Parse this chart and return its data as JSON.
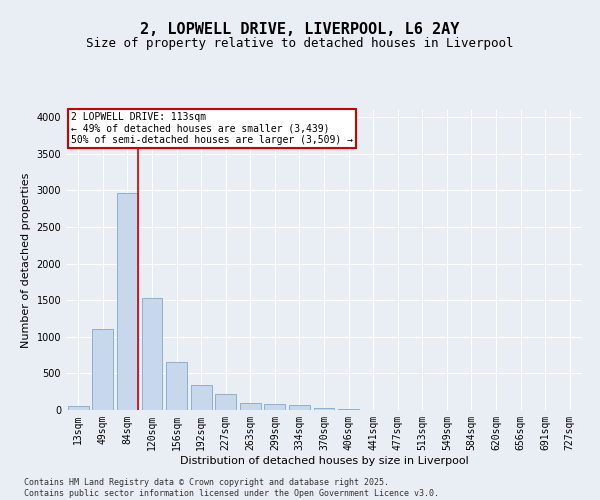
{
  "title": "2, LOPWELL DRIVE, LIVERPOOL, L6 2AY",
  "subtitle": "Size of property relative to detached houses in Liverpool",
  "xlabel": "Distribution of detached houses by size in Liverpool",
  "ylabel": "Number of detached properties",
  "categories": [
    "13sqm",
    "49sqm",
    "84sqm",
    "120sqm",
    "156sqm",
    "192sqm",
    "227sqm",
    "263sqm",
    "299sqm",
    "334sqm",
    "370sqm",
    "406sqm",
    "441sqm",
    "477sqm",
    "513sqm",
    "549sqm",
    "584sqm",
    "620sqm",
    "656sqm",
    "691sqm",
    "727sqm"
  ],
  "values": [
    50,
    1110,
    2970,
    1530,
    660,
    340,
    215,
    90,
    85,
    65,
    30,
    15,
    5,
    2,
    0,
    0,
    0,
    0,
    0,
    0,
    0
  ],
  "bar_color": "#c8d8ec",
  "bar_edge_color": "#7fa8cc",
  "vline_color": "#cc0000",
  "annotation_text": "2 LOPWELL DRIVE: 113sqm\n← 49% of detached houses are smaller (3,439)\n50% of semi-detached houses are larger (3,509) →",
  "annotation_box_color": "#ffffff",
  "annotation_box_edge": "#cc0000",
  "ylim": [
    0,
    4100
  ],
  "yticks": [
    0,
    500,
    1000,
    1500,
    2000,
    2500,
    3000,
    3500,
    4000
  ],
  "footer": "Contains HM Land Registry data © Crown copyright and database right 2025.\nContains public sector information licensed under the Open Government Licence v3.0.",
  "bg_color": "#e8eef4",
  "grid_color": "#ffffff",
  "title_fontsize": 11,
  "subtitle_fontsize": 9,
  "axis_label_fontsize": 8,
  "tick_fontsize": 7,
  "footer_fontsize": 6
}
